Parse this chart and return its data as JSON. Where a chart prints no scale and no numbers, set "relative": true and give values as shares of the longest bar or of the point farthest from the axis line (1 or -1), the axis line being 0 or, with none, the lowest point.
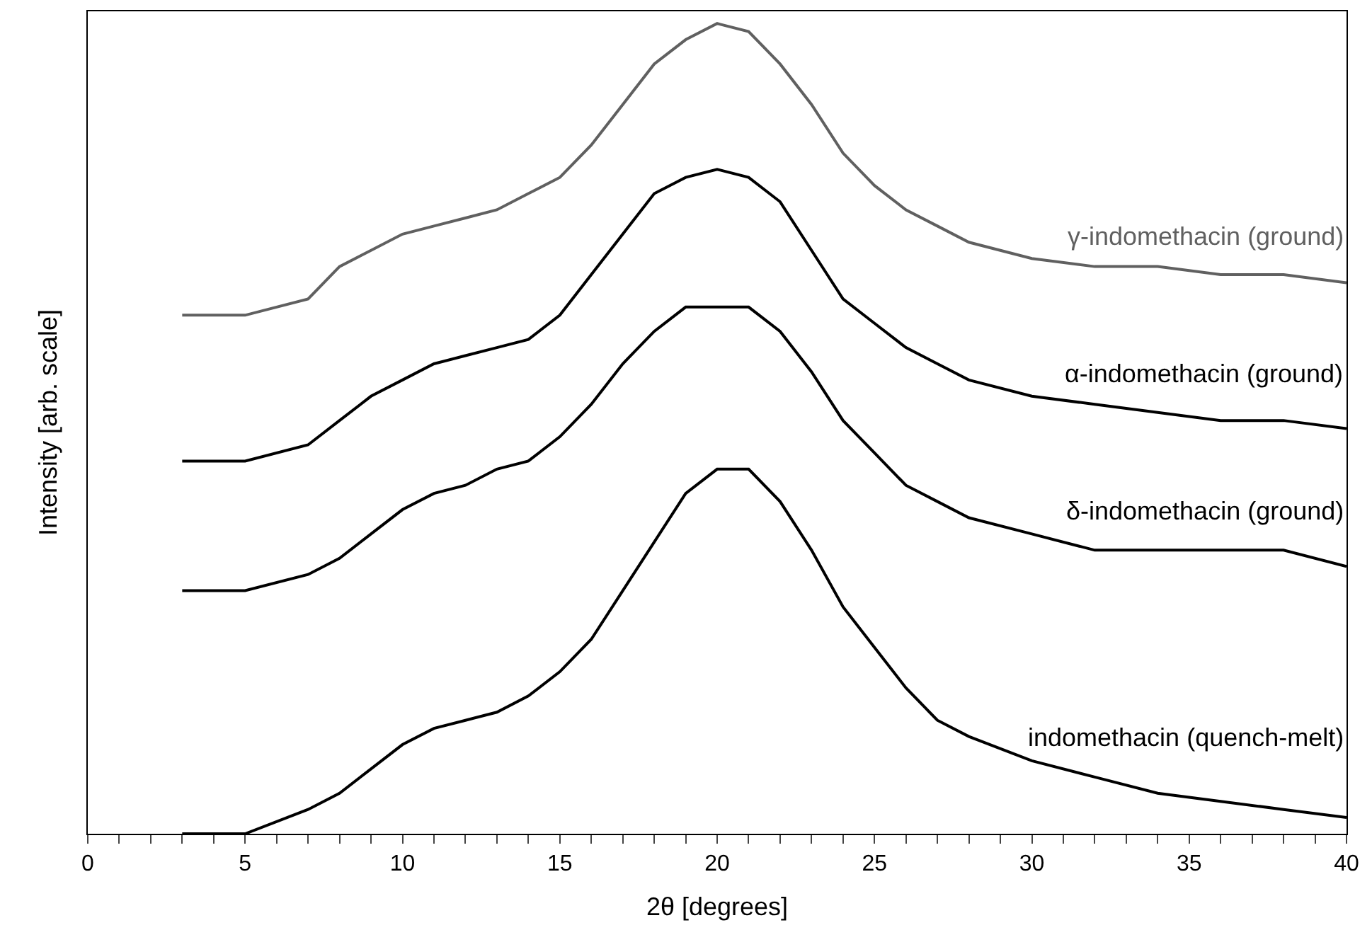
{
  "chart_data": {
    "type": "line",
    "relative": true,
    "xlabel": "2θ [degrees]",
    "ylabel": "Intensity [arb. scale]",
    "x": [
      3,
      5,
      7,
      8,
      9,
      10,
      11,
      12,
      13,
      14,
      15,
      16,
      17,
      18,
      19,
      20,
      21,
      22,
      23,
      24,
      25,
      26,
      27,
      28,
      30,
      32,
      34,
      36,
      38,
      40
    ],
    "xlim": [
      0,
      40
    ],
    "xticks": [
      0,
      {
        "value": 1,
        "label": null
      },
      {
        "value": 2,
        "label": null
      },
      {
        "value": 3,
        "label": null
      },
      {
        "value": 4,
        "label": null
      },
      5,
      {
        "value": 6,
        "label": null
      },
      {
        "value": 7,
        "label": null
      },
      {
        "value": 8,
        "label": null
      },
      {
        "value": 9,
        "label": null
      },
      10,
      {
        "value": 11,
        "label": null
      },
      {
        "value": 12,
        "label": null
      },
      {
        "value": 13,
        "label": null
      },
      {
        "value": 14,
        "label": null
      },
      15,
      {
        "value": 16,
        "label": null
      },
      {
        "value": 17,
        "label": null
      },
      {
        "value": 18,
        "label": null
      },
      {
        "value": 19,
        "label": null
      },
      20,
      {
        "value": 21,
        "label": null
      },
      {
        "value": 22,
        "label": null
      },
      {
        "value": 23,
        "label": null
      },
      {
        "value": 24,
        "label": null
      },
      25,
      {
        "value": 26,
        "label": null
      },
      {
        "value": 27,
        "label": null
      },
      {
        "value": 28,
        "label": null
      },
      {
        "value": 29,
        "label": null
      },
      30,
      {
        "value": 31,
        "label": null
      },
      {
        "value": 32,
        "label": null
      },
      {
        "value": 33,
        "label": null
      },
      {
        "value": 34,
        "label": null
      },
      35,
      {
        "value": 36,
        "label": null
      },
      {
        "value": 37,
        "label": null
      },
      {
        "value": 38,
        "label": null
      },
      {
        "value": 39,
        "label": null
      },
      40
    ],
    "legend": false,
    "marker": "none",
    "line_style": "solid",
    "series": [
      {
        "name": "γ-indomethacin (ground)",
        "color": "#606060",
        "values": [
          0.64,
          0.64,
          0.66,
          0.7,
          0.72,
          0.74,
          0.75,
          0.76,
          0.77,
          0.79,
          0.81,
          0.85,
          0.9,
          0.95,
          0.98,
          1.0,
          0.99,
          0.95,
          0.9,
          0.84,
          0.8,
          0.77,
          0.75,
          0.73,
          0.71,
          0.7,
          0.7,
          0.69,
          0.69,
          0.68
        ]
      },
      {
        "name": "α-indomethacin (ground)",
        "color": "#000000",
        "values": [
          0.46,
          0.46,
          0.48,
          0.51,
          0.54,
          0.56,
          0.58,
          0.59,
          0.6,
          0.61,
          0.64,
          0.69,
          0.74,
          0.79,
          0.81,
          0.82,
          0.81,
          0.78,
          0.72,
          0.66,
          0.63,
          0.6,
          0.58,
          0.56,
          0.54,
          0.53,
          0.52,
          0.51,
          0.51,
          0.5
        ]
      },
      {
        "name": "δ-indomethacin (ground)",
        "color": "#000000",
        "values": [
          0.3,
          0.3,
          0.32,
          0.34,
          0.37,
          0.4,
          0.42,
          0.43,
          0.45,
          0.46,
          0.49,
          0.53,
          0.58,
          0.62,
          0.65,
          0.65,
          0.65,
          0.62,
          0.57,
          0.51,
          0.47,
          0.43,
          0.41,
          0.39,
          0.37,
          0.35,
          0.35,
          0.35,
          0.35,
          0.33
        ]
      },
      {
        "name": "indomethacin (quench-melt)",
        "color": "#000000",
        "values": [
          0.0,
          0.0,
          0.03,
          0.05,
          0.08,
          0.11,
          0.13,
          0.14,
          0.15,
          0.17,
          0.2,
          0.24,
          0.3,
          0.36,
          0.42,
          0.45,
          0.45,
          0.41,
          0.35,
          0.28,
          0.23,
          0.18,
          0.14,
          0.12,
          0.09,
          0.07,
          0.05,
          0.04,
          0.03,
          0.02
        ]
      }
    ]
  }
}
